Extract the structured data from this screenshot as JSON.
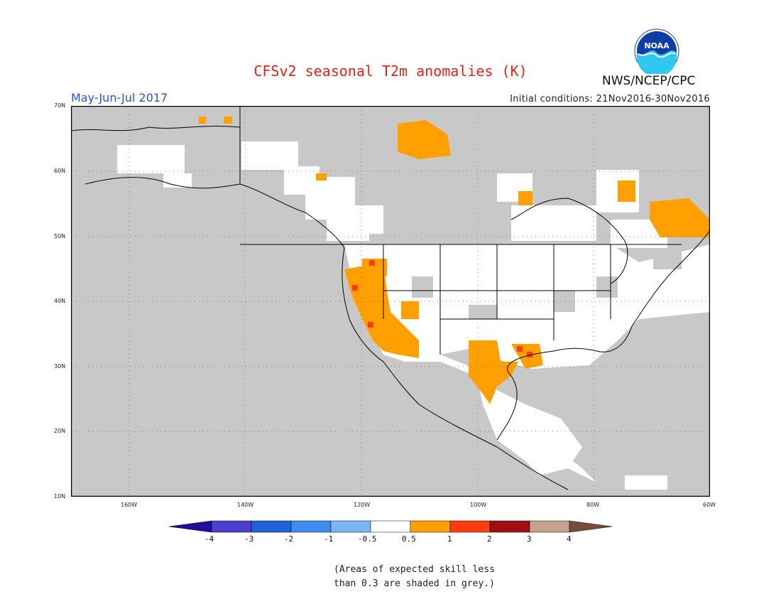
{
  "header": {
    "title": "CFSv2 seasonal T2m anomalies (K)",
    "period": "May-Jun-Jul 2017",
    "init_conditions": "Initial conditions: 21Nov2016-30Nov2016",
    "agency": "NWS/NCEP/CPC",
    "logo_text": "NOAA"
  },
  "map": {
    "lat_labels": [
      "70N",
      "60N",
      "50N",
      "40N",
      "30N",
      "20N",
      "10N"
    ],
    "lon_labels": [
      "160W",
      "140W",
      "120W",
      "100W",
      "80W",
      "60W"
    ],
    "extent": {
      "lon_min": -170,
      "lon_max": -60,
      "lat_min": 10,
      "lat_max": 70
    },
    "grid": "dotted",
    "background_color": "#c8c8c8",
    "neutral_color": "#ffffff",
    "land_outlines": "black",
    "warm_anomaly_regions": [
      {
        "area": "US West / Great Basin / Southwest",
        "value_range": "0.5 to 1"
      },
      {
        "area": "Texas / Gulf Coast",
        "value_range": "0.5 to 1"
      },
      {
        "area": "Northern Canada (near Great Bear Lake)",
        "value_range": "0.5 to 1"
      },
      {
        "area": "Quebec / Labrador",
        "value_range": "0.5 to 1"
      },
      {
        "area": "Nevada / California spots",
        "value_range": "1 to 2"
      },
      {
        "area": "Louisiana / Mississippi spots",
        "value_range": "1 to 2"
      }
    ]
  },
  "legend": {
    "labels": [
      "-4",
      "-3",
      "-2",
      "-1",
      "-0.5",
      "0.5",
      "1",
      "2",
      "3",
      "4"
    ],
    "colors": [
      "#2a0a9a",
      "#4a3fcf",
      "#1f63d6",
      "#3e8cf0",
      "#7cb6f4",
      "#ffffff",
      "#ffa000",
      "#ff3c10",
      "#a01010",
      "#c8a090",
      "#7a4a3a"
    ]
  },
  "note": {
    "line1": "(Areas of expected skill less",
    "line2": "than 0.3 are shaded in grey.)"
  }
}
